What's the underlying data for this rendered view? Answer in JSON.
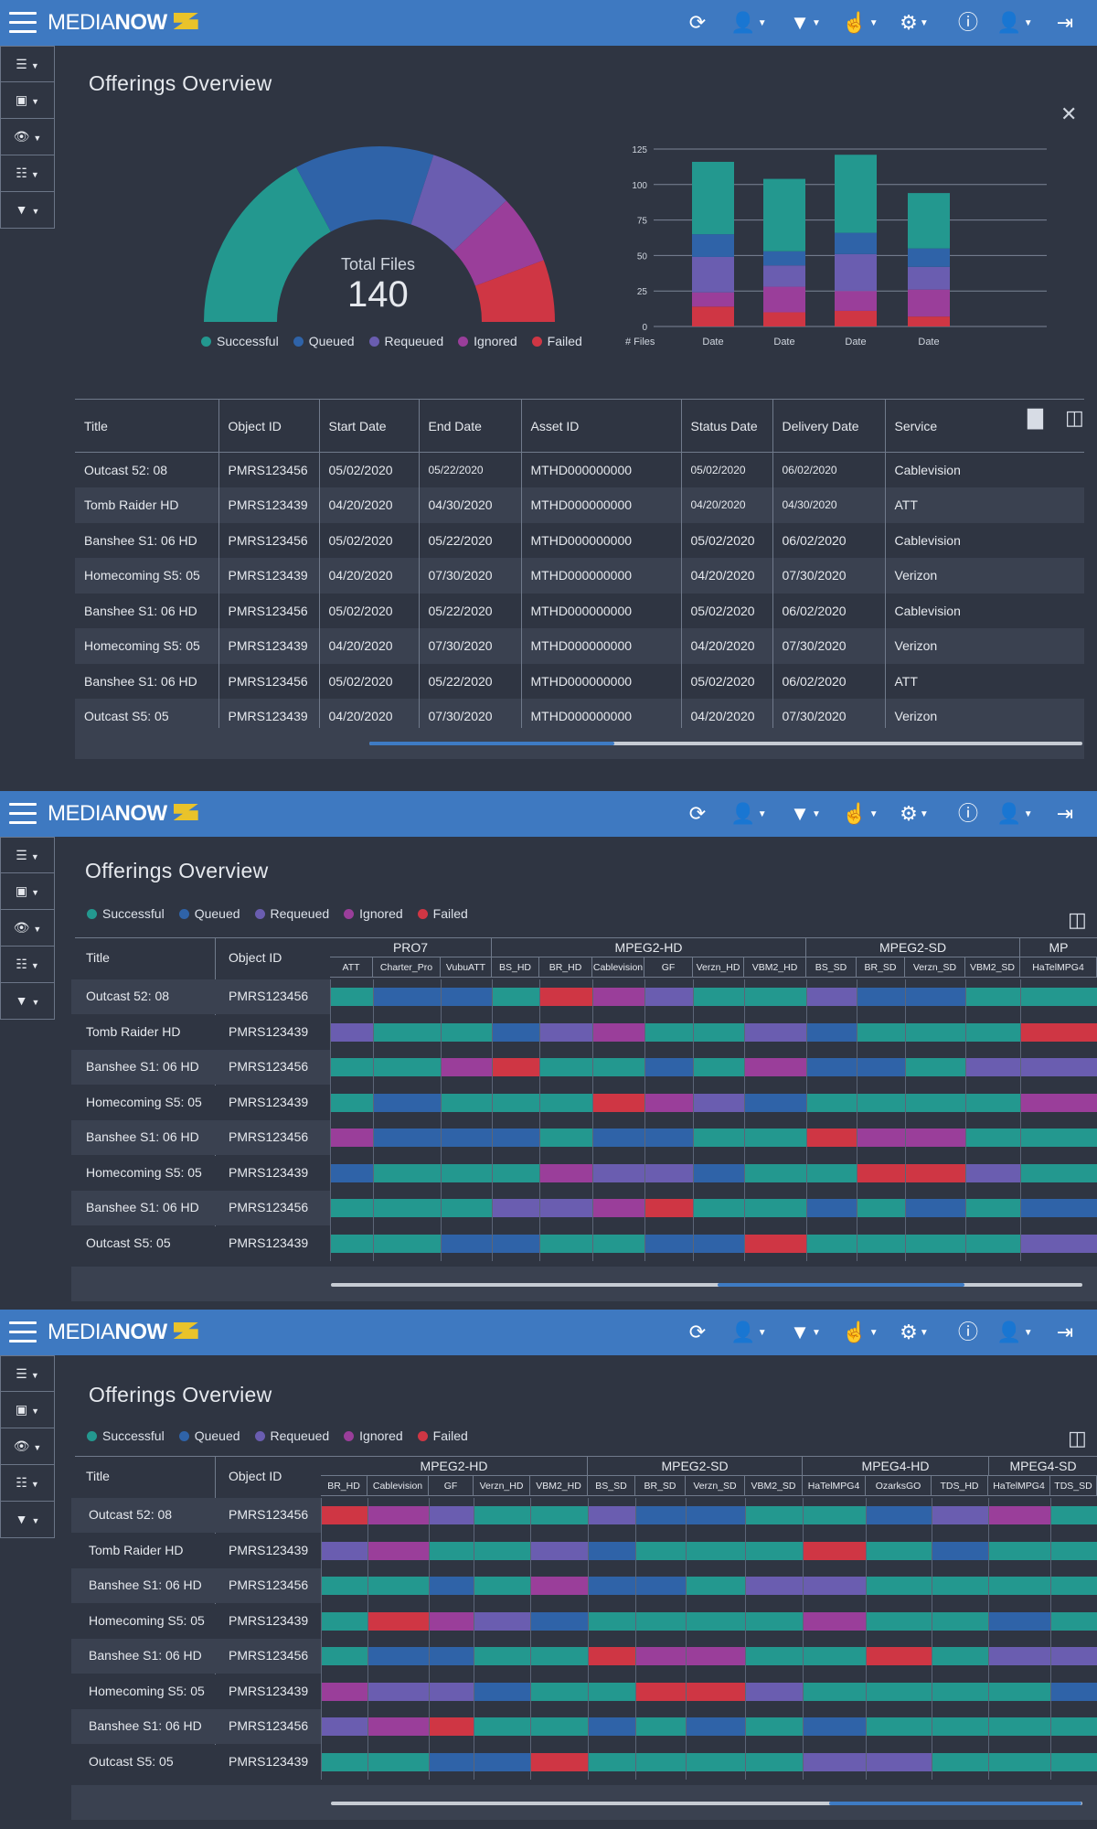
{
  "app": {
    "logo_text_light": "MEDIA",
    "logo_text_bold": "NOW"
  },
  "toolbar": {
    "icons": [
      "refresh-icon",
      "user-location-icon",
      "filter-add-icon",
      "touch-icon",
      "gear-icon",
      "info-icon",
      "user-icon",
      "logout-icon"
    ]
  },
  "sidebar": {
    "icons": [
      "rows-icon",
      "video-icon",
      "comment-eye-icon",
      "document-icon",
      "filter-icon"
    ]
  },
  "colors": {
    "successful": "#23988f",
    "queued": "#2f63a8",
    "requeued": "#6a5db0",
    "ignored": "#9a3e9a",
    "failed": "#cf3644",
    "topbar": "#3e79c1"
  },
  "page_title": "Offerings Overview",
  "legend": [
    {
      "label": "Successful",
      "color": "#23988f"
    },
    {
      "label": "Queued",
      "color": "#2f63a8"
    },
    {
      "label": "Requeued",
      "color": "#6a5db0"
    },
    {
      "label": "Ignored",
      "color": "#9a3e9a"
    },
    {
      "label": "Failed",
      "color": "#cf3644"
    }
  ],
  "donut": {
    "label": "Total Files",
    "total": "140"
  },
  "chart_data": [
    {
      "type": "pie",
      "title": "Total Files",
      "total": 140,
      "slices": [
        {
          "name": "Successful",
          "value": 48
        },
        {
          "name": "Queued",
          "value": 36
        },
        {
          "name": "Requeued",
          "value": 22
        },
        {
          "name": "Ignored",
          "value": 18
        },
        {
          "name": "Failed",
          "value": 16
        }
      ]
    },
    {
      "type": "bar",
      "stacked": true,
      "ylabel": "# Files",
      "categories": [
        "Date",
        "Date",
        "Date",
        "Date"
      ],
      "ylim": [
        0,
        125
      ],
      "yticks": [
        0,
        25,
        50,
        75,
        100,
        125
      ],
      "series": [
        {
          "name": "Failed",
          "values": [
            14,
            10,
            11,
            7
          ]
        },
        {
          "name": "Ignored",
          "values": [
            10,
            18,
            14,
            19
          ]
        },
        {
          "name": "Requeued",
          "values": [
            25,
            15,
            26,
            16
          ]
        },
        {
          "name": "Queued",
          "values": [
            16,
            10,
            15,
            13
          ]
        },
        {
          "name": "Successful",
          "values": [
            51,
            51,
            55,
            39
          ]
        }
      ]
    }
  ],
  "table": {
    "headers": [
      "Title",
      "Object ID",
      "Start Date",
      "End Date",
      "Asset ID",
      "Status Date",
      "Delivery Date",
      "Service"
    ],
    "rows": [
      [
        "Outcast 52: 08",
        "PMRS123456",
        "05/02/2020",
        "05/22/2020",
        "MTHD000000000",
        "05/02/2020",
        "06/02/2020",
        "Cablevision"
      ],
      [
        "Tomb Raider HD",
        "PMRS123439",
        "04/20/2020",
        "04/30/2020",
        "MTHD000000000",
        "04/20/2020",
        "04/30/2020",
        "ATT"
      ],
      [
        "Banshee S1: 06 HD",
        "PMRS123456",
        "05/02/2020",
        "05/22/2020",
        "MTHD000000000",
        "05/02/2020",
        "06/02/2020",
        "Cablevision"
      ],
      [
        "Homecoming S5: 05",
        "PMRS123439",
        "04/20/2020",
        "07/30/2020",
        "MTHD000000000",
        "04/20/2020",
        "07/30/2020",
        "Verizon"
      ],
      [
        "Banshee S1: 06 HD",
        "PMRS123456",
        "05/02/2020",
        "05/22/2020",
        "MTHD000000000",
        "05/02/2020",
        "06/02/2020",
        "Cablevision"
      ],
      [
        "Homecoming S5: 05",
        "PMRS123439",
        "04/20/2020",
        "07/30/2020",
        "MTHD000000000",
        "04/20/2020",
        "07/30/2020",
        "Verizon"
      ],
      [
        "Banshee S1: 06 HD",
        "PMRS123456",
        "05/02/2020",
        "05/22/2020",
        "MTHD000000000",
        "05/02/2020",
        "06/02/2020",
        "ATT"
      ],
      [
        "Outcast  S5: 05",
        "PMRS123439",
        "04/20/2020",
        "07/30/2020",
        "MTHD000000000",
        "04/20/2020",
        "07/30/2020",
        "Verizon"
      ]
    ]
  },
  "matrix1": {
    "groups": [
      "PRO7",
      "MPEG2-HD",
      "MPEG2-SD",
      "MP"
    ],
    "subs": [
      "ATT",
      "Charter_Pro",
      "VubuATT",
      "BS_HD",
      "BR_HD",
      "Cablevision",
      "GF",
      "Verzn_HD",
      "VBM2_HD",
      "BS_SD",
      "BR_SD",
      "Verzn_SD",
      "VBM2_SD",
      "HaTelMPG4"
    ],
    "cells": [
      [
        "S",
        "Q",
        "Q",
        "S",
        "F",
        "I",
        "R",
        "S",
        "S",
        "R",
        "Q",
        "Q",
        "S",
        "S"
      ],
      [
        "R",
        "S",
        "S",
        "Q",
        "R",
        "I",
        "S",
        "S",
        "R",
        "Q",
        "S",
        "S",
        "S",
        "F"
      ],
      [
        "S",
        "S",
        "I",
        "F",
        "S",
        "S",
        "Q",
        "S",
        "I",
        "Q",
        "Q",
        "S",
        "R",
        "R"
      ],
      [
        "S",
        "Q",
        "S",
        "S",
        "S",
        "F",
        "I",
        "R",
        "Q",
        "S",
        "S",
        "S",
        "S",
        "I"
      ],
      [
        "I",
        "Q",
        "Q",
        "Q",
        "S",
        "Q",
        "Q",
        "S",
        "S",
        "F",
        "I",
        "I",
        "S",
        "S"
      ],
      [
        "Q",
        "S",
        "S",
        "S",
        "I",
        "R",
        "R",
        "Q",
        "S",
        "S",
        "F",
        "F",
        "R",
        "S"
      ],
      [
        "S",
        "S",
        "S",
        "R",
        "R",
        "I",
        "F",
        "S",
        "S",
        "Q",
        "S",
        "Q",
        "S",
        "Q"
      ],
      [
        "S",
        "S",
        "Q",
        "Q",
        "S",
        "S",
        "Q",
        "Q",
        "F",
        "S",
        "S",
        "S",
        "S",
        "R"
      ]
    ]
  },
  "matrix2": {
    "groups": [
      "MPEG2-HD",
      "MPEG2-SD",
      "MPEG4-HD",
      "MPEG4-SD"
    ],
    "subs": [
      "BR_HD",
      "Cablevision",
      "GF",
      "Verzn_HD",
      "VBM2_HD",
      "BS_SD",
      "BR_SD",
      "Verzn_SD",
      "VBM2_SD",
      "HaTelMPG4",
      "OzarksGO",
      "TDS_HD",
      "HaTelMPG4",
      "TDS_SD"
    ],
    "cells": [
      [
        "F",
        "I",
        "R",
        "S",
        "S",
        "R",
        "Q",
        "Q",
        "S",
        "S",
        "Q",
        "R",
        "I",
        "S"
      ],
      [
        "R",
        "I",
        "S",
        "S",
        "R",
        "Q",
        "S",
        "S",
        "S",
        "F",
        "S",
        "Q",
        "S",
        "S"
      ],
      [
        "S",
        "S",
        "Q",
        "S",
        "I",
        "Q",
        "Q",
        "S",
        "R",
        "R",
        "S",
        "S",
        "S",
        "S"
      ],
      [
        "S",
        "F",
        "I",
        "R",
        "Q",
        "S",
        "S",
        "S",
        "S",
        "I",
        "S",
        "S",
        "Q",
        "S"
      ],
      [
        "S",
        "Q",
        "Q",
        "S",
        "S",
        "F",
        "I",
        "I",
        "S",
        "S",
        "F",
        "S",
        "R",
        "R"
      ],
      [
        "I",
        "R",
        "R",
        "Q",
        "S",
        "S",
        "F",
        "F",
        "R",
        "S",
        "S",
        "S",
        "S",
        "Q"
      ],
      [
        "R",
        "I",
        "F",
        "S",
        "S",
        "Q",
        "S",
        "Q",
        "S",
        "Q",
        "S",
        "S",
        "S",
        "S"
      ],
      [
        "S",
        "S",
        "Q",
        "Q",
        "F",
        "S",
        "S",
        "S",
        "S",
        "R",
        "R",
        "S",
        "S",
        "S"
      ]
    ]
  }
}
